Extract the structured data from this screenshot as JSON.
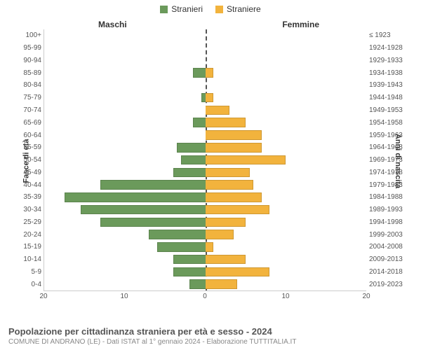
{
  "legend": {
    "male": {
      "label": "Stranieri",
      "color": "#6b9a5b"
    },
    "female": {
      "label": "Straniere",
      "color": "#f2b33d"
    }
  },
  "side_titles": {
    "left": "Maschi",
    "right": "Femmine"
  },
  "vaxis": {
    "left": "Fasce di età",
    "right": "Anni di nascita"
  },
  "chart": {
    "type": "population-pyramid",
    "xmax": 20,
    "xticks_left": [
      20,
      10,
      0
    ],
    "xticks_right": [
      0,
      10,
      20
    ],
    "bar_color_m": "#6b9a5b",
    "bar_color_f": "#f2b33d",
    "background": "#ffffff",
    "grid_color": "#cccccc",
    "rows": [
      {
        "age": "100+",
        "birth": "≤ 1923",
        "m": 0,
        "f": 0
      },
      {
        "age": "95-99",
        "birth": "1924-1928",
        "m": 0,
        "f": 0
      },
      {
        "age": "90-94",
        "birth": "1929-1933",
        "m": 0,
        "f": 0
      },
      {
        "age": "85-89",
        "birth": "1934-1938",
        "m": 1.5,
        "f": 1
      },
      {
        "age": "80-84",
        "birth": "1939-1943",
        "m": 0,
        "f": 0
      },
      {
        "age": "75-79",
        "birth": "1944-1948",
        "m": 0.5,
        "f": 1
      },
      {
        "age": "70-74",
        "birth": "1949-1953",
        "m": 0,
        "f": 3
      },
      {
        "age": "65-69",
        "birth": "1954-1958",
        "m": 1.5,
        "f": 5
      },
      {
        "age": "60-64",
        "birth": "1959-1963",
        "m": 0,
        "f": 7
      },
      {
        "age": "55-59",
        "birth": "1964-1968",
        "m": 3.5,
        "f": 7
      },
      {
        "age": "50-54",
        "birth": "1969-1973",
        "m": 3,
        "f": 10
      },
      {
        "age": "45-49",
        "birth": "1974-1978",
        "m": 4,
        "f": 5.5
      },
      {
        "age": "40-44",
        "birth": "1979-1983",
        "m": 13,
        "f": 6
      },
      {
        "age": "35-39",
        "birth": "1984-1988",
        "m": 17.5,
        "f": 7
      },
      {
        "age": "30-34",
        "birth": "1989-1993",
        "m": 15.5,
        "f": 8
      },
      {
        "age": "25-29",
        "birth": "1994-1998",
        "m": 13,
        "f": 5
      },
      {
        "age": "20-24",
        "birth": "1999-2003",
        "m": 7,
        "f": 3.5
      },
      {
        "age": "15-19",
        "birth": "2004-2008",
        "m": 6,
        "f": 1
      },
      {
        "age": "10-14",
        "birth": "2009-2013",
        "m": 4,
        "f": 5
      },
      {
        "age": "5-9",
        "birth": "2014-2018",
        "m": 4,
        "f": 8
      },
      {
        "age": "0-4",
        "birth": "2019-2023",
        "m": 2,
        "f": 4
      }
    ]
  },
  "footer": {
    "title": "Popolazione per cittadinanza straniera per età e sesso - 2024",
    "subtitle": "COMUNE DI ANDRANO (LE) - Dati ISTAT al 1° gennaio 2024 - Elaborazione TUTTITALIA.IT"
  }
}
